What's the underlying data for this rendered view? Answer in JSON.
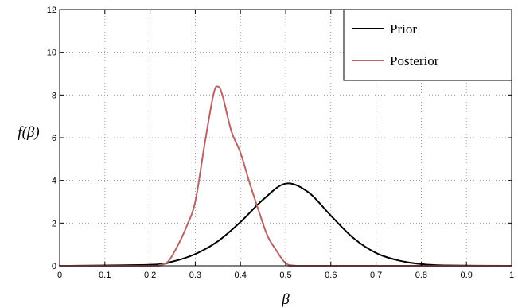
{
  "chart_data": {
    "type": "line",
    "title": "",
    "xlabel": "β",
    "ylabel": "f(β)",
    "xlim": [
      0,
      1
    ],
    "ylim": [
      0,
      12
    ],
    "xticks": [
      "0",
      "0.1",
      "0.2",
      "0.3",
      "0.4",
      "0.5",
      "0.6",
      "0.7",
      "0.8",
      "0.9",
      "1"
    ],
    "yticks": [
      "0",
      "2",
      "4",
      "6",
      "8",
      "10",
      "12"
    ],
    "grid": true,
    "legend_position": "top-right",
    "series": [
      {
        "name": "Prior",
        "color": "#000000",
        "x": [
          0,
          0.2,
          0.25,
          0.3,
          0.35,
          0.4,
          0.45,
          0.5,
          0.55,
          0.6,
          0.65,
          0.7,
          0.75,
          0.8,
          0.85,
          1
        ],
        "y": [
          0,
          0.05,
          0.2,
          0.55,
          1.15,
          2.05,
          3.1,
          3.85,
          3.45,
          2.35,
          1.3,
          0.6,
          0.25,
          0.08,
          0.02,
          0
        ]
      },
      {
        "name": "Posterior",
        "color": "#b86464",
        "x": [
          0,
          0.2,
          0.22,
          0.24,
          0.26,
          0.28,
          0.3,
          0.32,
          0.34,
          0.35,
          0.36,
          0.38,
          0.4,
          0.42,
          0.44,
          0.46,
          0.48,
          0.5,
          0.52,
          0.55,
          1
        ],
        "y": [
          0,
          0,
          0.03,
          0.2,
          0.9,
          1.8,
          3.0,
          5.6,
          8.0,
          8.4,
          8.0,
          6.3,
          5.3,
          3.9,
          2.6,
          1.4,
          0.7,
          0.12,
          0.01,
          0,
          0
        ]
      }
    ]
  }
}
